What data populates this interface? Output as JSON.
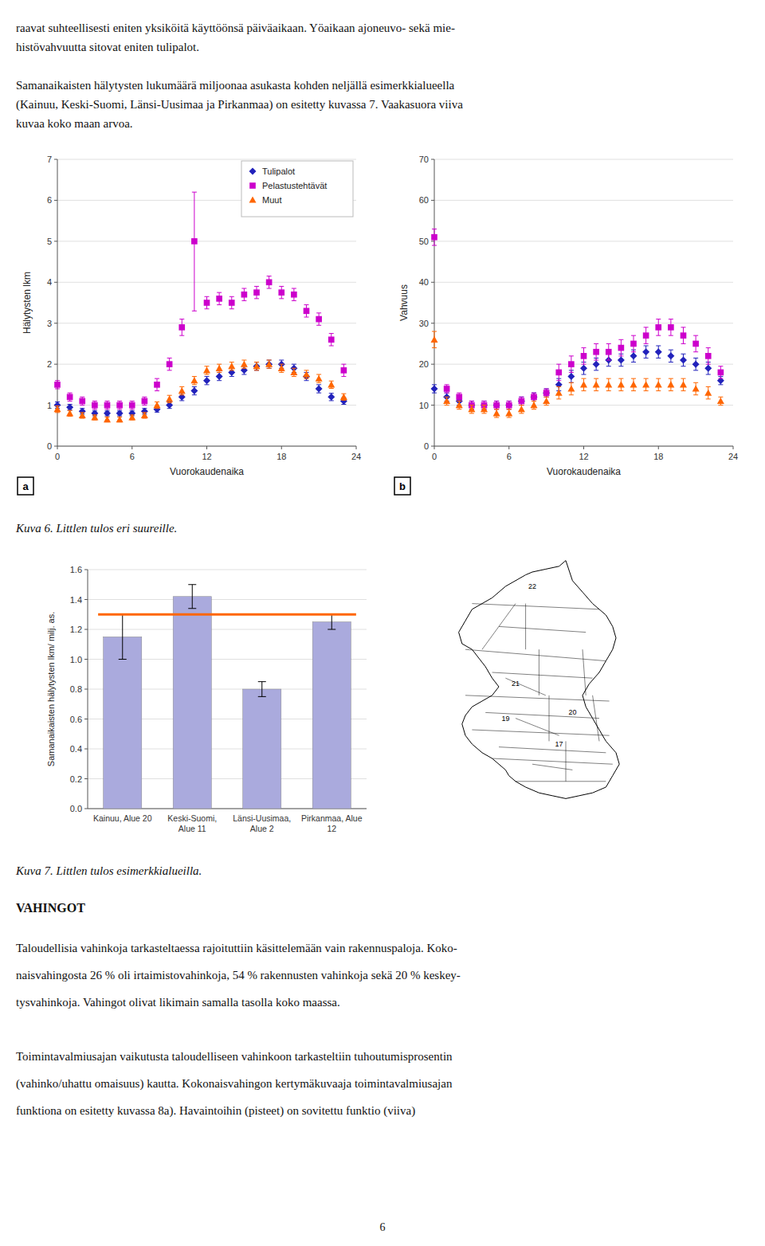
{
  "page_text": {
    "top": [
      "raavat suhteellisesti eniten yksiköitä käyttöönsä päiväaikaan. Yöaikaan ajoneuvo- sekä mie-",
      "histövahvuutta sitovat eniten tulipalot.",
      "Samanaikaisten hälytysten lukumäärä miljoonaa asukasta kohden neljällä esimerkkialueella",
      "(Kainuu, Keski-Suomi, Länsi-Uusimaa ja Pirkanmaa) on esitetty kuvassa 7. Vaakasuora viiva",
      "kuvaa koko maan arvoa."
    ],
    "caption6": "Kuva 6. Littlen tulos eri suureille.",
    "caption7": "Kuva 7. Littlen tulos esimerkkialueilla.",
    "heading": "VAHINGOT",
    "bottom": [
      "Taloudellisia vahinkoja tarkasteltaessa rajoituttiin käsittelemään vain rakennuspaloja. Koko-",
      "naisvahingosta 26 % oli irtaimistovahinkoja, 54 % rakennusten vahinkoja sekä 20 % keskey-",
      "tysvahinkoja. Vahingot olivat likimain samalla tasolla koko maassa.",
      "Toimintavalmiusajan vaikutusta taloudelliseen vahinkoon tarkasteltiin tuhoutumisprosentin",
      "(vahinko/uhattu omaisuus) kautta. Kokonaisvahingon kertymäkuvaaja toimintavalmiusajan",
      "funktiona on esitetty kuvassa 8a). Havaintoihin (pisteet) on sovitettu funktio (viiva)"
    ],
    "page_number": "6"
  },
  "chart_data": [
    {
      "type": "scatter",
      "panel_label": "a",
      "xlabel": "Vuorokaudenaika",
      "ylabel": "Hälytysten lkm",
      "xlim": [
        0,
        24
      ],
      "ylim": [
        0,
        7
      ],
      "xticks": [
        0,
        6,
        12,
        18,
        24
      ],
      "yticks": [
        0,
        1,
        2,
        3,
        4,
        5,
        6,
        7
      ],
      "grid": true,
      "legend": "upper right",
      "x": [
        0,
        1,
        2,
        3,
        4,
        5,
        6,
        7,
        8,
        9,
        10,
        11,
        12,
        13,
        14,
        15,
        16,
        17,
        18,
        19,
        20,
        21,
        22,
        23
      ],
      "series": [
        {
          "name": "Tulipalot",
          "color": "#2222bb",
          "marker": "diamond",
          "values": [
            1.0,
            0.95,
            0.85,
            0.8,
            0.8,
            0.8,
            0.8,
            0.85,
            0.9,
            1.0,
            1.2,
            1.35,
            1.6,
            1.7,
            1.8,
            1.85,
            1.95,
            2.0,
            2.0,
            1.9,
            1.7,
            1.4,
            1.2,
            1.1
          ],
          "error": [
            0.08,
            0.07,
            0.07,
            0.06,
            0.06,
            0.06,
            0.06,
            0.07,
            0.07,
            0.08,
            0.09,
            0.1,
            0.1,
            0.1,
            0.1,
            0.1,
            0.1,
            0.1,
            0.1,
            0.1,
            0.1,
            0.1,
            0.09,
            0.08
          ]
        },
        {
          "name": "Pelastustehtävät",
          "color": "#cc00cc",
          "marker": "square",
          "values": [
            1.5,
            1.2,
            1.1,
            1.0,
            1.0,
            1.0,
            1.0,
            1.1,
            1.5,
            2.0,
            2.9,
            5.0,
            3.5,
            3.6,
            3.5,
            3.7,
            3.75,
            4.0,
            3.75,
            3.7,
            3.3,
            3.1,
            2.6,
            1.85
          ],
          "error_low": [
            0.1,
            0.1,
            0.1,
            0.1,
            0.1,
            0.1,
            0.1,
            0.1,
            0.15,
            0.15,
            0.2,
            1.7,
            0.15,
            0.15,
            0.15,
            0.15,
            0.15,
            0.15,
            0.15,
            0.15,
            0.15,
            0.15,
            0.15,
            0.15
          ],
          "error_high": [
            0.1,
            0.1,
            0.1,
            0.1,
            0.1,
            0.1,
            0.1,
            0.1,
            0.15,
            0.15,
            0.2,
            1.2,
            0.15,
            0.15,
            0.15,
            0.15,
            0.15,
            0.15,
            0.15,
            0.15,
            0.15,
            0.15,
            0.15,
            0.15
          ]
        },
        {
          "name": "Muut",
          "color": "#ff6600",
          "marker": "triangle",
          "values": [
            0.9,
            0.8,
            0.75,
            0.7,
            0.65,
            0.65,
            0.7,
            0.75,
            1.0,
            1.15,
            1.35,
            1.6,
            1.85,
            1.9,
            1.95,
            2.0,
            1.95,
            2.0,
            1.9,
            1.8,
            1.75,
            1.65,
            1.5,
            1.2
          ],
          "error": [
            0.08,
            0.07,
            0.07,
            0.06,
            0.06,
            0.06,
            0.06,
            0.07,
            0.08,
            0.09,
            0.1,
            0.1,
            0.1,
            0.1,
            0.1,
            0.1,
            0.1,
            0.1,
            0.1,
            0.1,
            0.1,
            0.1,
            0.09,
            0.08
          ]
        }
      ]
    },
    {
      "type": "scatter",
      "panel_label": "b",
      "xlabel": "Vuorokaudenaika",
      "ylabel": "Vahvuus",
      "xlim": [
        0,
        24
      ],
      "ylim": [
        0,
        70
      ],
      "xticks": [
        0,
        6,
        12,
        18,
        24
      ],
      "yticks": [
        0,
        10,
        20,
        30,
        40,
        50,
        60,
        70
      ],
      "grid": true,
      "x": [
        0,
        1,
        2,
        3,
        4,
        5,
        6,
        7,
        8,
        9,
        10,
        11,
        12,
        13,
        14,
        15,
        16,
        17,
        18,
        19,
        20,
        21,
        22,
        23
      ],
      "series": [
        {
          "color": "#2222bb",
          "marker": "diamond",
          "values": [
            14,
            12,
            11,
            10,
            10,
            10,
            10,
            11,
            12,
            13,
            15,
            17,
            19,
            20,
            21,
            21,
            22,
            23,
            23,
            22,
            21,
            20,
            19,
            16
          ],
          "error": [
            1,
            1,
            1,
            1,
            1,
            1,
            1,
            1,
            1,
            1,
            1.5,
            1.5,
            1.5,
            1.5,
            1.5,
            1.5,
            1.5,
            1.5,
            1.5,
            1.5,
            1.5,
            1.5,
            1.5,
            1
          ]
        },
        {
          "color": "#cc00cc",
          "marker": "square",
          "values": [
            51,
            14,
            12,
            10,
            10,
            10,
            10,
            11,
            12,
            13,
            18,
            20,
            22,
            23,
            23,
            24,
            25,
            27,
            29,
            29,
            27,
            25,
            22,
            18
          ],
          "error": [
            2,
            1,
            1,
            1,
            1,
            1,
            1,
            1,
            1,
            1,
            2,
            2,
            2,
            2,
            2,
            2,
            2,
            2,
            2,
            2,
            2,
            2,
            2,
            1.5
          ]
        },
        {
          "color": "#ff6600",
          "marker": "triangle",
          "values": [
            26,
            11,
            10,
            9,
            9,
            8,
            8,
            9,
            10,
            11,
            13,
            14,
            15,
            15,
            15,
            15,
            15,
            15,
            15,
            15,
            15,
            14,
            13,
            11
          ],
          "error": [
            2,
            1,
            1,
            1,
            1,
            1,
            1,
            1,
            1,
            1,
            1.5,
            1.5,
            1.5,
            1.5,
            1.5,
            1.5,
            1.5,
            1.5,
            1.5,
            1.5,
            1.5,
            1.5,
            1.5,
            1
          ]
        }
      ]
    },
    {
      "type": "bar",
      "ylabel": "Samanaikaisten hälytysten lkm/ milj. as.",
      "categories": [
        "Kainuu, Alue 20",
        "Keski-Suomi,\nAlue 11",
        "Länsi-Uusimaa,\nAlue 2",
        "Pirkanmaa, Alue\n12"
      ],
      "values": [
        1.15,
        1.42,
        0.8,
        1.25
      ],
      "error": [
        0.15,
        0.08,
        0.05,
        0.05
      ],
      "color": "#aaaadd",
      "reference_line": {
        "value": 1.3,
        "color": "#ff6600"
      },
      "ylim": [
        0,
        1.6
      ],
      "yticks": [
        {
          "value": 0,
          "label": "0.0"
        },
        0.2,
        0.4,
        0.6,
        0.8,
        {
          "value": 1,
          "label": "1.0"
        },
        1.2,
        1.4,
        1.6
      ],
      "grid": true
    },
    {
      "type": "map",
      "labels": [
        "22",
        "21",
        "20",
        "19",
        "17"
      ]
    }
  ]
}
